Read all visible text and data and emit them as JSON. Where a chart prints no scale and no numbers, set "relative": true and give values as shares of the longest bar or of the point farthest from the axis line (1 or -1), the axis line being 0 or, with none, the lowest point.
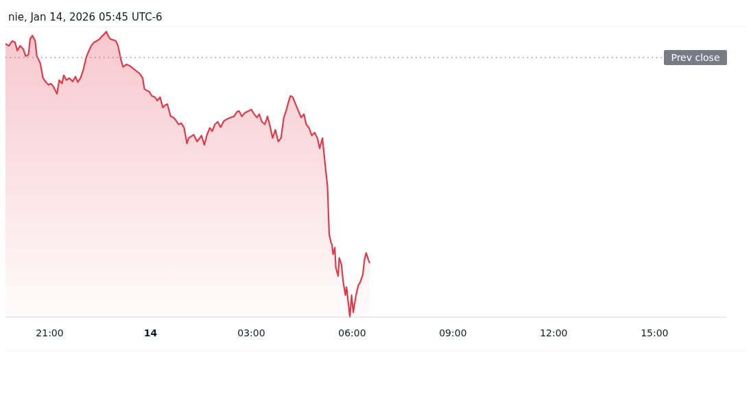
{
  "chart_data": {
    "type": "area",
    "title": "nie, Jan 14, 2026 05:45 UTC-6",
    "relative": true,
    "xlim": [
      "2026-01-13T19:41",
      "2026-01-14T17:07"
    ],
    "xticks": [
      {
        "value": "2026-01-13T21:00",
        "label": "21:00"
      },
      {
        "value": "2026-01-14T00:00",
        "label": "14"
      },
      {
        "value": "2026-01-14T03:00",
        "label": "03:00"
      },
      {
        "value": "2026-01-14T06:00",
        "label": "06:00"
      },
      {
        "value": "2026-01-14T09:00",
        "label": "09:00"
      },
      {
        "value": "2026-01-14T12:00",
        "label": "12:00"
      },
      {
        "value": "2026-01-14T15:00",
        "label": "15:00"
      }
    ],
    "ref_lines": [
      {
        "axis": "y",
        "value": 0.909,
        "label": "Prev close",
        "color": "#787b86",
        "line_style": "dotted"
      }
    ],
    "series": [
      {
        "color": "#e03a4a",
        "x": [
          "2026-01-13T19:41",
          "2026-01-13T19:47",
          "2026-01-13T19:53",
          "2026-01-13T19:58",
          "2026-01-13T20:02",
          "2026-01-13T20:07",
          "2026-01-13T20:13",
          "2026-01-13T20:17",
          "2026-01-13T20:22",
          "2026-01-13T20:25",
          "2026-01-13T20:29",
          "2026-01-13T20:34",
          "2026-01-13T20:37",
          "2026-01-13T20:43",
          "2026-01-13T20:48",
          "2026-01-13T20:53",
          "2026-01-13T20:58",
          "2026-01-13T21:02",
          "2026-01-13T21:07",
          "2026-01-13T21:10",
          "2026-01-13T21:13",
          "2026-01-13T21:17",
          "2026-01-13T21:22",
          "2026-01-13T21:25",
          "2026-01-13T21:30",
          "2026-01-13T21:35",
          "2026-01-13T21:41",
          "2026-01-13T21:46",
          "2026-01-13T21:50",
          "2026-01-13T21:55",
          "2026-01-13T22:00",
          "2026-01-13T22:05",
          "2026-01-13T22:10",
          "2026-01-13T22:14",
          "2026-01-13T22:19",
          "2026-01-13T22:24",
          "2026-01-13T22:29",
          "2026-01-13T22:32",
          "2026-01-13T22:37",
          "2026-01-13T22:41",
          "2026-01-13T22:44",
          "2026-01-13T22:48",
          "2026-01-13T22:53",
          "2026-01-13T22:58",
          "2026-01-13T23:02",
          "2026-01-13T23:07",
          "2026-01-13T23:11",
          "2026-01-13T23:17",
          "2026-01-13T23:23",
          "2026-01-13T23:29",
          "2026-01-13T23:35",
          "2026-01-13T23:41",
          "2026-01-13T23:46",
          "2026-01-13T23:49",
          "2026-01-13T23:53",
          "2026-01-13T23:58",
          "2026-01-14T00:02",
          "2026-01-14T00:08",
          "2026-01-14T00:12",
          "2026-01-14T00:17",
          "2026-01-14T00:22",
          "2026-01-14T00:26",
          "2026-01-14T00:30",
          "2026-01-14T00:36",
          "2026-01-14T00:41",
          "2026-01-14T00:46",
          "2026-01-14T00:50",
          "2026-01-14T00:55",
          "2026-01-14T01:00",
          "2026-01-14T01:05",
          "2026-01-14T01:08",
          "2026-01-14T01:12",
          "2026-01-14T01:17",
          "2026-01-14T01:23",
          "2026-01-14T01:28",
          "2026-01-14T01:31",
          "2026-01-14T01:36",
          "2026-01-14T01:41",
          "2026-01-14T01:46",
          "2026-01-14T01:50",
          "2026-01-14T01:55",
          "2026-01-14T02:00",
          "2026-01-14T02:05",
          "2026-01-14T02:11",
          "2026-01-14T02:17",
          "2026-01-14T02:23",
          "2026-01-14T02:29",
          "2026-01-14T02:34",
          "2026-01-14T02:38",
          "2026-01-14T02:43",
          "2026-01-14T02:48",
          "2026-01-14T02:55",
          "2026-01-14T03:00",
          "2026-01-14T03:05",
          "2026-01-14T03:10",
          "2026-01-14T03:14",
          "2026-01-14T03:19",
          "2026-01-14T03:24",
          "2026-01-14T03:29",
          "2026-01-14T03:34",
          "2026-01-14T03:38",
          "2026-01-14T03:43",
          "2026-01-14T03:48",
          "2026-01-14T03:53",
          "2026-01-14T03:58",
          "2026-01-14T04:02",
          "2026-01-14T04:07",
          "2026-01-14T04:10",
          "2026-01-14T04:14",
          "2026-01-14T04:19",
          "2026-01-14T04:24",
          "2026-01-14T04:29",
          "2026-01-14T04:34",
          "2026-01-14T04:38",
          "2026-01-14T04:43",
          "2026-01-14T04:48",
          "2026-01-14T04:53",
          "2026-01-14T04:58",
          "2026-01-14T05:02",
          "2026-01-14T05:07",
          "2026-01-14T05:12",
          "2026-01-14T05:16",
          "2026-01-14T05:19",
          "2026-01-14T05:22",
          "2026-01-14T05:24",
          "2026-01-14T05:26",
          "2026-01-14T05:29",
          "2026-01-14T05:31",
          "2026-01-14T05:35",
          "2026-01-14T05:37",
          "2026-01-14T05:41",
          "2026-01-14T05:44",
          "2026-01-14T05:48",
          "2026-01-14T05:50",
          "2026-01-14T05:53",
          "2026-01-14T05:56",
          "2026-01-14T05:59",
          "2026-01-14T06:02",
          "2026-01-14T06:05",
          "2026-01-14T06:07",
          "2026-01-14T06:11",
          "2026-01-14T06:14",
          "2026-01-14T06:19",
          "2026-01-14T06:22",
          "2026-01-14T06:25",
          "2026-01-14T06:29",
          "2026-01-14T06:31"
        ],
        "values": [
          0.957,
          0.95,
          0.967,
          0.962,
          0.933,
          0.95,
          0.938,
          0.914,
          0.919,
          0.974,
          0.986,
          0.967,
          0.914,
          0.89,
          0.837,
          0.823,
          0.813,
          0.818,
          0.806,
          0.794,
          0.782,
          0.83,
          0.818,
          0.847,
          0.83,
          0.837,
          0.825,
          0.842,
          0.823,
          0.837,
          0.866,
          0.909,
          0.933,
          0.95,
          0.962,
          0.967,
          0.974,
          0.981,
          0.99,
          1,
          0.986,
          0.974,
          0.971,
          0.967,
          0.95,
          0.902,
          0.876,
          0.885,
          0.88,
          0.871,
          0.861,
          0.852,
          0.837,
          0.799,
          0.794,
          0.789,
          0.775,
          0.77,
          0.758,
          0.77,
          0.734,
          0.742,
          0.746,
          0.703,
          0.699,
          0.687,
          0.675,
          0.679,
          0.663,
          0.608,
          0.627,
          0.632,
          0.639,
          0.615,
          0.627,
          0.636,
          0.603,
          0.639,
          0.663,
          0.651,
          0.675,
          0.684,
          0.665,
          0.687,
          0.694,
          0.699,
          0.703,
          0.718,
          0.722,
          0.703,
          0.715,
          0.722,
          0.727,
          0.711,
          0.699,
          0.711,
          0.684,
          0.675,
          0.703,
          0.663,
          0.627,
          0.656,
          0.615,
          0.627,
          0.699,
          0.722,
          0.758,
          0.775,
          0.77,
          0.746,
          0.722,
          0.699,
          0.711,
          0.675,
          0.663,
          0.636,
          0.646,
          0.627,
          0.591,
          0.627,
          0.531,
          0.459,
          0.292,
          0.263,
          0.254,
          0.22,
          0.244,
          0.172,
          0.144,
          0.208,
          0.184,
          0.124,
          0.077,
          0.105,
          0.053,
          0,
          0.077,
          0.017,
          0.053,
          0.077,
          0.112,
          0.12,
          0.148,
          0.201,
          0.225,
          0.201,
          0.191
        ]
      }
    ]
  }
}
